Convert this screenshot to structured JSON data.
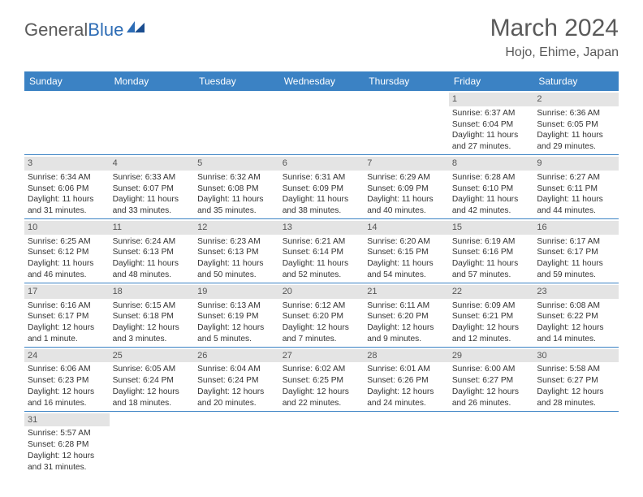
{
  "logo": {
    "part1": "General",
    "part2": "Blue"
  },
  "title": "March 2024",
  "location": "Hojo, Ehime, Japan",
  "weekdays": [
    "Sunday",
    "Monday",
    "Tuesday",
    "Wednesday",
    "Thursday",
    "Friday",
    "Saturday"
  ],
  "colors": {
    "headerBg": "#3b82c4",
    "headerText": "#ffffff",
    "dayBg": "#e4e4e4",
    "border": "#3b82c4",
    "logoAccent": "#2d6cb5",
    "textMuted": "#5a5a5a"
  },
  "typography": {
    "title_fontsize": 30,
    "location_fontsize": 16,
    "weekday_fontsize": 12,
    "cell_fontsize": 10.2
  },
  "startWeekday": 5,
  "days": [
    {
      "n": 1,
      "sunrise": "6:37 AM",
      "sunset": "6:04 PM",
      "daylight": "11 hours and 27 minutes."
    },
    {
      "n": 2,
      "sunrise": "6:36 AM",
      "sunset": "6:05 PM",
      "daylight": "11 hours and 29 minutes."
    },
    {
      "n": 3,
      "sunrise": "6:34 AM",
      "sunset": "6:06 PM",
      "daylight": "11 hours and 31 minutes."
    },
    {
      "n": 4,
      "sunrise": "6:33 AM",
      "sunset": "6:07 PM",
      "daylight": "11 hours and 33 minutes."
    },
    {
      "n": 5,
      "sunrise": "6:32 AM",
      "sunset": "6:08 PM",
      "daylight": "11 hours and 35 minutes."
    },
    {
      "n": 6,
      "sunrise": "6:31 AM",
      "sunset": "6:09 PM",
      "daylight": "11 hours and 38 minutes."
    },
    {
      "n": 7,
      "sunrise": "6:29 AM",
      "sunset": "6:09 PM",
      "daylight": "11 hours and 40 minutes."
    },
    {
      "n": 8,
      "sunrise": "6:28 AM",
      "sunset": "6:10 PM",
      "daylight": "11 hours and 42 minutes."
    },
    {
      "n": 9,
      "sunrise": "6:27 AM",
      "sunset": "6:11 PM",
      "daylight": "11 hours and 44 minutes."
    },
    {
      "n": 10,
      "sunrise": "6:25 AM",
      "sunset": "6:12 PM",
      "daylight": "11 hours and 46 minutes."
    },
    {
      "n": 11,
      "sunrise": "6:24 AM",
      "sunset": "6:13 PM",
      "daylight": "11 hours and 48 minutes."
    },
    {
      "n": 12,
      "sunrise": "6:23 AM",
      "sunset": "6:13 PM",
      "daylight": "11 hours and 50 minutes."
    },
    {
      "n": 13,
      "sunrise": "6:21 AM",
      "sunset": "6:14 PM",
      "daylight": "11 hours and 52 minutes."
    },
    {
      "n": 14,
      "sunrise": "6:20 AM",
      "sunset": "6:15 PM",
      "daylight": "11 hours and 54 minutes."
    },
    {
      "n": 15,
      "sunrise": "6:19 AM",
      "sunset": "6:16 PM",
      "daylight": "11 hours and 57 minutes."
    },
    {
      "n": 16,
      "sunrise": "6:17 AM",
      "sunset": "6:17 PM",
      "daylight": "11 hours and 59 minutes."
    },
    {
      "n": 17,
      "sunrise": "6:16 AM",
      "sunset": "6:17 PM",
      "daylight": "12 hours and 1 minute."
    },
    {
      "n": 18,
      "sunrise": "6:15 AM",
      "sunset": "6:18 PM",
      "daylight": "12 hours and 3 minutes."
    },
    {
      "n": 19,
      "sunrise": "6:13 AM",
      "sunset": "6:19 PM",
      "daylight": "12 hours and 5 minutes."
    },
    {
      "n": 20,
      "sunrise": "6:12 AM",
      "sunset": "6:20 PM",
      "daylight": "12 hours and 7 minutes."
    },
    {
      "n": 21,
      "sunrise": "6:11 AM",
      "sunset": "6:20 PM",
      "daylight": "12 hours and 9 minutes."
    },
    {
      "n": 22,
      "sunrise": "6:09 AM",
      "sunset": "6:21 PM",
      "daylight": "12 hours and 12 minutes."
    },
    {
      "n": 23,
      "sunrise": "6:08 AM",
      "sunset": "6:22 PM",
      "daylight": "12 hours and 14 minutes."
    },
    {
      "n": 24,
      "sunrise": "6:06 AM",
      "sunset": "6:23 PM",
      "daylight": "12 hours and 16 minutes."
    },
    {
      "n": 25,
      "sunrise": "6:05 AM",
      "sunset": "6:24 PM",
      "daylight": "12 hours and 18 minutes."
    },
    {
      "n": 26,
      "sunrise": "6:04 AM",
      "sunset": "6:24 PM",
      "daylight": "12 hours and 20 minutes."
    },
    {
      "n": 27,
      "sunrise": "6:02 AM",
      "sunset": "6:25 PM",
      "daylight": "12 hours and 22 minutes."
    },
    {
      "n": 28,
      "sunrise": "6:01 AM",
      "sunset": "6:26 PM",
      "daylight": "12 hours and 24 minutes."
    },
    {
      "n": 29,
      "sunrise": "6:00 AM",
      "sunset": "6:27 PM",
      "daylight": "12 hours and 26 minutes."
    },
    {
      "n": 30,
      "sunrise": "5:58 AM",
      "sunset": "6:27 PM",
      "daylight": "12 hours and 28 minutes."
    },
    {
      "n": 31,
      "sunrise": "5:57 AM",
      "sunset": "6:28 PM",
      "daylight": "12 hours and 31 minutes."
    }
  ]
}
